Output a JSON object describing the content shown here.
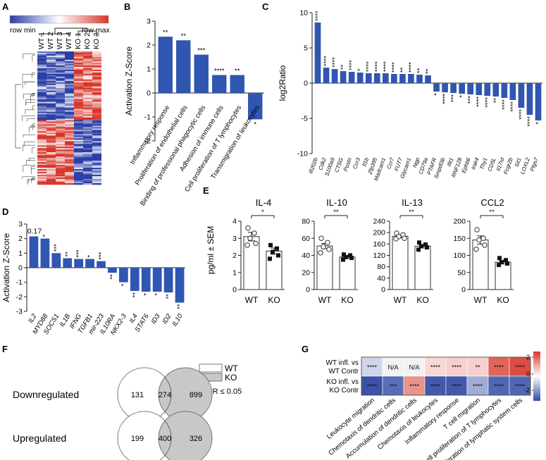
{
  "chart_data": [
    {
      "panel": "A",
      "type": "heatmap",
      "legend": {
        "min_label": "row min",
        "max_label": "row max",
        "colors": [
          "#2a3ea6",
          "#ffffff",
          "#d8352a"
        ]
      },
      "columns": [
        "WT 1",
        "WT 2",
        "WT 3",
        "WT 4",
        "KO 1",
        "KO 2",
        "KO 3"
      ]
    },
    {
      "panel": "B",
      "type": "bar",
      "ylabel": "Activation Z-Score",
      "ylim": [
        -2,
        3
      ],
      "yticks": [
        "-2",
        "-1",
        "0",
        "1",
        "2",
        "3"
      ],
      "categories": [
        "Inflammatory response",
        "Proliferation of endothelial cells",
        "Binding of professional phagocytic cells",
        "Adhesion of immune cells",
        "Cell proliferation of T lymphocytes",
        "Transmigration of leukocytes"
      ],
      "values": [
        2.35,
        2.2,
        1.6,
        0.75,
        0.75,
        -1.1
      ],
      "significance": [
        "**",
        "**",
        "***",
        "****",
        "**",
        "*"
      ]
    },
    {
      "panel": "C",
      "type": "bar",
      "ylabel": "log2Ratio",
      "ylim": [
        -10,
        10
      ],
      "yticks": [
        "-10",
        "-5",
        "0",
        "5",
        "10"
      ],
      "categories": [
        "Ifi202b",
        "Cdk2",
        "S100a9",
        "CTSG",
        "Postn",
        "Ccr3",
        "Il1b",
        "Zfp395",
        "Madcam1",
        "Ccr7",
        "FUT7",
        "Glycam1",
        "Ngp",
        "CD79a",
        "PTAFR",
        "Smpdl3b",
        "Ifit1",
        "RNF128",
        "Ephb6",
        "Irak4",
        "Thy1",
        "CD5L",
        "Il17rd",
        "Fcgr2b",
        "Sit1",
        "LOXL2",
        "Ptgs7"
      ],
      "values": [
        8.6,
        2.2,
        2.0,
        1.7,
        1.6,
        1.5,
        1.4,
        1.4,
        1.4,
        1.3,
        1.3,
        1.3,
        1.2,
        1.1,
        -1.2,
        -1.3,
        -1.4,
        -1.5,
        -1.6,
        -1.7,
        -1.8,
        -1.9,
        -2.1,
        -2.4,
        -3.5,
        -4.5,
        -5.3
      ],
      "significance": [
        "****",
        "****",
        "****",
        "**",
        "****",
        "*",
        "****",
        "****",
        "****",
        "****",
        "**",
        "****",
        "**",
        "**",
        "*",
        "****",
        "***",
        "*",
        "***",
        "****",
        "****",
        "**",
        "****",
        "****",
        "****",
        "****",
        "*"
      ]
    },
    {
      "panel": "D",
      "type": "bar",
      "ylabel": "Activation Z-Score",
      "ylim": [
        -3,
        3
      ],
      "yticks": [
        "-3",
        "-2",
        "-1",
        "0",
        "1",
        "2",
        "3"
      ],
      "top_label": "0.17",
      "categories": [
        "IL2",
        "MYD88",
        "SOCS1",
        "IL1B",
        "IFNG",
        "TGFB1",
        "mir-223",
        "IL10RA",
        "NKX2-3",
        "IL4",
        "STAT6",
        "ID3",
        "ID2",
        "IL10"
      ],
      "values": [
        2.15,
        2.0,
        1.0,
        0.65,
        0.6,
        0.6,
        0.45,
        -0.35,
        -1.0,
        -1.6,
        -1.65,
        -1.65,
        -1.7,
        -2.4
      ],
      "significance": [
        "",
        "*",
        "***",
        "**",
        "***",
        "*",
        "***",
        "**",
        "*",
        "**",
        "*",
        "*",
        "**",
        "**"
      ]
    },
    {
      "panel": "E",
      "type": "bar",
      "ylabel": "pg/ml ± SEM",
      "groups": [
        "WT",
        "KO"
      ],
      "subplots": [
        {
          "title": "IL-4",
          "ymax": 4,
          "yticks": [
            "0",
            "1",
            "2",
            "3",
            "4"
          ],
          "means": [
            3.1,
            2.25
          ],
          "sem": [
            0.25,
            0.18
          ],
          "wt_points": [
            3.6,
            3.3,
            3.0,
            2.7,
            2.6
          ],
          "ko_points": [
            2.6,
            2.4,
            2.2,
            2.0,
            1.8
          ],
          "significance": "*"
        },
        {
          "title": "IL-10",
          "ymax": 80,
          "yticks": [
            "0",
            "20",
            "40",
            "60",
            "80"
          ],
          "means": [
            51,
            38
          ],
          "sem": [
            3,
            1.5
          ],
          "wt_points": [
            60,
            55,
            50,
            47,
            43
          ],
          "ko_points": [
            41,
            40,
            38,
            37,
            35
          ],
          "significance": "**"
        },
        {
          "title": "IL-13",
          "ymax": 240,
          "yticks": [
            "0",
            "40",
            "80",
            "120",
            "160",
            "200",
            "240"
          ],
          "means": [
            187,
            152
          ],
          "sem": [
            5,
            6
          ],
          "wt_points": [
            198,
            192,
            186,
            180,
            178
          ],
          "ko_points": [
            165,
            158,
            152,
            148,
            140
          ],
          "significance": "**"
        },
        {
          "title": "CCL2",
          "ymax": 200,
          "yticks": [
            "0",
            "50",
            "100",
            "150",
            "200"
          ],
          "means": [
            145,
            80
          ],
          "sem": [
            12,
            5
          ],
          "wt_points": [
            175,
            150,
            145,
            130,
            118
          ],
          "ko_points": [
            92,
            86,
            80,
            76,
            72
          ],
          "significance": "**"
        }
      ]
    },
    {
      "panel": "F",
      "type": "venn",
      "legend": [
        "WT",
        "KO"
      ],
      "fdr": "FDR ≤ 0.05",
      "rows": [
        {
          "label": "Downregulated",
          "wt_only": 131,
          "overlap": 274,
          "ko_only": 899
        },
        {
          "label": "Upregulated",
          "wt_only": 199,
          "overlap": 400,
          "ko_only": 326
        }
      ]
    },
    {
      "panel": "G",
      "type": "heatmap",
      "rows": [
        "WT infl. vs WT Contr",
        "KO infl. vs KO Contr"
      ],
      "columns": [
        "Leukocyte migration",
        "Chemotaxis of dendritic cells",
        "Accumulation of dendritic cells",
        "Chemotaxis of leukocytes",
        "Inflammatory response",
        "T cell migration",
        "T cell proliferation of T lymphocytes",
        "Proliferation of lymphatic system cells"
      ],
      "values": [
        [
          -0.6,
          0,
          0,
          0.5,
          0.6,
          0.6,
          2.0,
          2.3
        ],
        [
          -2.5,
          -2.1,
          1.4,
          -2.4,
          -2.4,
          -1.2,
          -2.2,
          -2.2
        ]
      ],
      "annotations": [
        [
          "****",
          "N/A",
          "N/A",
          "****",
          "****",
          "**",
          "****",
          "****"
        ],
        [
          "****",
          "***",
          "****",
          "****",
          "****",
          "****",
          "****",
          "****"
        ]
      ],
      "colorbar": {
        "ticks": [
          "2",
          "0",
          "-2"
        ]
      }
    }
  ]
}
